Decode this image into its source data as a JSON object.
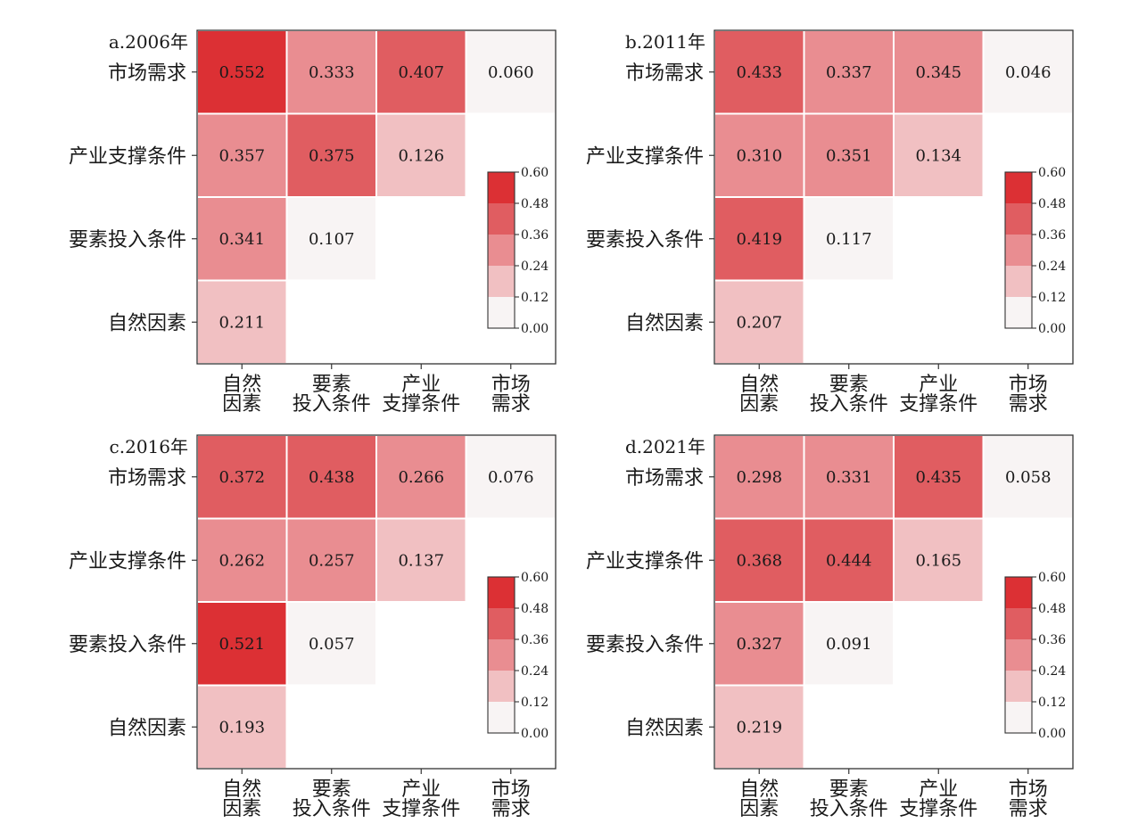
{
  "chart_data": [
    {
      "type": "heatmap",
      "title": "a.2006年",
      "rows": [
        "市场需求",
        "产业支撑条件",
        "要素投入条件",
        "自然因素"
      ],
      "columns": [
        [
          "自然",
          "因素"
        ],
        [
          "要素",
          "投入条件"
        ],
        [
          "产业",
          "支撑条件"
        ],
        [
          "市场",
          "需求"
        ]
      ],
      "values": [
        [
          "0.552",
          "0.333",
          "0.407",
          "0.060"
        ],
        [
          "0.357",
          "0.375",
          "0.126",
          null
        ],
        [
          "0.341",
          "0.107",
          null,
          null
        ],
        [
          "0.211",
          null,
          null,
          null
        ]
      ],
      "colorbar": {
        "ticks": [
          "0.60",
          "0.48",
          "0.36",
          "0.24",
          "0.12",
          "0.00"
        ],
        "range": [
          0,
          0.6
        ]
      },
      "grid": false
    },
    {
      "type": "heatmap",
      "title": "b.2011年",
      "rows": [
        "市场需求",
        "产业支撑条件",
        "要素投入条件",
        "自然因素"
      ],
      "columns": [
        [
          "自然",
          "因素"
        ],
        [
          "要素",
          "投入条件"
        ],
        [
          "产业",
          "支撑条件"
        ],
        [
          "市场",
          "需求"
        ]
      ],
      "values": [
        [
          "0.433",
          "0.337",
          "0.345",
          "0.046"
        ],
        [
          "0.310",
          "0.351",
          "0.134",
          null
        ],
        [
          "0.419",
          "0.117",
          null,
          null
        ],
        [
          "0.207",
          null,
          null,
          null
        ]
      ],
      "colorbar": {
        "ticks": [
          "0.60",
          "0.48",
          "0.36",
          "0.24",
          "0.12",
          "0.00"
        ],
        "range": [
          0,
          0.6
        ]
      },
      "grid": false
    },
    {
      "type": "heatmap",
      "title": "c.2016年",
      "rows": [
        "市场需求",
        "产业支撑条件",
        "要素投入条件",
        "自然因素"
      ],
      "columns": [
        [
          "自然",
          "因素"
        ],
        [
          "要素",
          "投入条件"
        ],
        [
          "产业",
          "支撑条件"
        ],
        [
          "市场",
          "需求"
        ]
      ],
      "values": [
        [
          "0.372",
          "0.438",
          "0.266",
          "0.076"
        ],
        [
          "0.262",
          "0.257",
          "0.137",
          null
        ],
        [
          "0.521",
          "0.057",
          null,
          null
        ],
        [
          "0.193",
          null,
          null,
          null
        ]
      ],
      "colorbar": {
        "ticks": [
          "0.60",
          "0.48",
          "0.36",
          "0.24",
          "0.12",
          "0.00"
        ],
        "range": [
          0,
          0.6
        ]
      },
      "grid": false
    },
    {
      "type": "heatmap",
      "title": "d.2021年",
      "rows": [
        "市场需求",
        "产业支撑条件",
        "要素投入条件",
        "自然因素"
      ],
      "columns": [
        [
          "自然",
          "因素"
        ],
        [
          "要素",
          "投入条件"
        ],
        [
          "产业",
          "支撑条件"
        ],
        [
          "市场",
          "需求"
        ]
      ],
      "values": [
        [
          "0.298",
          "0.331",
          "0.435",
          "0.058"
        ],
        [
          "0.368",
          "0.444",
          "0.165",
          null
        ],
        [
          "0.327",
          "0.091",
          null,
          null
        ],
        [
          "0.219",
          null,
          null,
          null
        ]
      ],
      "colorbar": {
        "ticks": [
          "0.60",
          "0.48",
          "0.36",
          "0.24",
          "0.12",
          "0.00"
        ],
        "range": [
          0,
          0.6
        ]
      },
      "grid": false
    }
  ],
  "colors": {
    "bins": [
      "#f8f4f4",
      "#f1c0c2",
      "#e98d91",
      "#e05d61",
      "#dc3034"
    ],
    "frame": "#333333",
    "cell_border": "#ffffff"
  }
}
